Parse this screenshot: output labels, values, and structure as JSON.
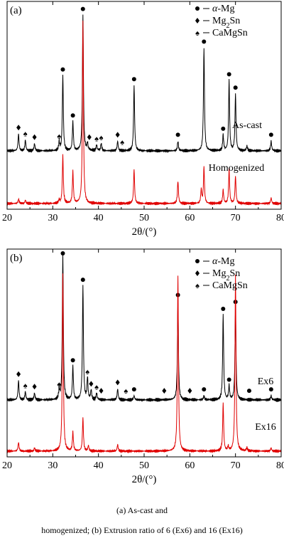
{
  "chart_data": [
    {
      "type": "line",
      "panel_label": "(a)",
      "xlabel": "2θ/(°)",
      "xlim": [
        20,
        80
      ],
      "x_ticks": [
        20,
        30,
        40,
        50,
        60,
        70,
        80
      ],
      "grid": false,
      "legend_position": "top-right",
      "legend": [
        {
          "symbol": "circle",
          "label": "α-Mg"
        },
        {
          "symbol": "diamond",
          "label": "Mg2Sn"
        },
        {
          "symbol": "spade",
          "label": "CaMgSn"
        }
      ],
      "series": [
        {
          "name": "As-cast",
          "color": "#000000",
          "peaks": [
            {
              "x": 22.5,
              "h": 0.14
            },
            {
              "x": 24.0,
              "h": 0.09
            },
            {
              "x": 26.0,
              "h": 0.06
            },
            {
              "x": 31.4,
              "h": 0.07
            },
            {
              "x": 32.2,
              "h": 0.62
            },
            {
              "x": 34.4,
              "h": 0.24
            },
            {
              "x": 36.6,
              "h": 1.12
            },
            {
              "x": 37.6,
              "h": 0.06
            },
            {
              "x": 39.6,
              "h": 0.05
            },
            {
              "x": 40.6,
              "h": 0.06
            },
            {
              "x": 44.2,
              "h": 0.08
            },
            {
              "x": 47.8,
              "h": 0.54
            },
            {
              "x": 57.4,
              "h": 0.08
            },
            {
              "x": 63.1,
              "h": 0.85
            },
            {
              "x": 67.3,
              "h": 0.13
            },
            {
              "x": 68.6,
              "h": 0.58
            },
            {
              "x": 70.0,
              "h": 0.47
            },
            {
              "x": 72.5,
              "h": 0.04
            },
            {
              "x": 77.8,
              "h": 0.08
            }
          ],
          "markers": [
            {
              "x": 22.5,
              "symbol": "diamond"
            },
            {
              "x": 24.0,
              "symbol": "spade"
            },
            {
              "x": 26.0,
              "symbol": "diamond"
            },
            {
              "x": 31.4,
              "symbol": "spade"
            },
            {
              "x": 32.2,
              "symbol": "circle"
            },
            {
              "x": 34.4,
              "symbol": "circle"
            },
            {
              "x": 36.6,
              "symbol": "circle"
            },
            {
              "x": 38.0,
              "symbol": "diamond"
            },
            {
              "x": 39.6,
              "symbol": "spade"
            },
            {
              "x": 40.6,
              "symbol": "spade"
            },
            {
              "x": 44.2,
              "symbol": "diamond"
            },
            {
              "x": 45.2,
              "symbol": "spade"
            },
            {
              "x": 47.8,
              "symbol": "circle"
            },
            {
              "x": 57.4,
              "symbol": "circle"
            },
            {
              "x": 63.1,
              "symbol": "circle"
            },
            {
              "x": 67.3,
              "symbol": "circle"
            },
            {
              "x": 68.6,
              "symbol": "circle"
            },
            {
              "x": 70.0,
              "symbol": "circle"
            },
            {
              "x": 77.8,
              "symbol": "circle"
            }
          ]
        },
        {
          "name": "Homogenized",
          "color": "#e00000",
          "peaks": [
            {
              "x": 22.5,
              "h": 0.04
            },
            {
              "x": 24.0,
              "h": 0.03
            },
            {
              "x": 31.4,
              "h": 0.03
            },
            {
              "x": 32.2,
              "h": 0.42
            },
            {
              "x": 34.4,
              "h": 0.28
            },
            {
              "x": 36.6,
              "h": 1.6
            },
            {
              "x": 47.8,
              "h": 0.3
            },
            {
              "x": 57.4,
              "h": 0.2
            },
            {
              "x": 63.1,
              "h": 0.32
            },
            {
              "x": 62.5,
              "h": 0.12
            },
            {
              "x": 67.3,
              "h": 0.12
            },
            {
              "x": 68.6,
              "h": 0.3
            },
            {
              "x": 70.0,
              "h": 0.24
            },
            {
              "x": 77.8,
              "h": 0.05
            }
          ]
        }
      ]
    },
    {
      "type": "line",
      "panel_label": "(b)",
      "xlabel": "2θ/(°)",
      "xlim": [
        20,
        80
      ],
      "x_ticks": [
        20,
        30,
        40,
        50,
        60,
        70,
        80
      ],
      "grid": false,
      "legend_position": "top-right",
      "legend": [
        {
          "symbol": "circle",
          "label": "α-Mg"
        },
        {
          "symbol": "diamond",
          "label": "Mg2Sn"
        },
        {
          "symbol": "spade",
          "label": "CaMgSn"
        }
      ],
      "series": [
        {
          "name": "Ex6",
          "color": "#000000",
          "peaks": [
            {
              "x": 22.5,
              "h": 0.14
            },
            {
              "x": 24.0,
              "h": 0.06
            },
            {
              "x": 26.0,
              "h": 0.05
            },
            {
              "x": 31.4,
              "h": 0.07
            },
            {
              "x": 32.2,
              "h": 1.05
            },
            {
              "x": 34.4,
              "h": 0.24
            },
            {
              "x": 36.6,
              "h": 0.82
            },
            {
              "x": 37.6,
              "h": 0.16
            },
            {
              "x": 38.4,
              "h": 0.07
            },
            {
              "x": 39.6,
              "h": 0.05
            },
            {
              "x": 44.2,
              "h": 0.08
            },
            {
              "x": 47.8,
              "h": 0.03
            },
            {
              "x": 57.4,
              "h": 0.71
            },
            {
              "x": 63.1,
              "h": 0.03
            },
            {
              "x": 67.3,
              "h": 0.61
            },
            {
              "x": 68.6,
              "h": 0.1
            },
            {
              "x": 70.0,
              "h": 0.66
            },
            {
              "x": 77.8,
              "h": 0.03
            }
          ],
          "markers": [
            {
              "x": 22.5,
              "symbol": "diamond"
            },
            {
              "x": 24.0,
              "symbol": "spade"
            },
            {
              "x": 26.0,
              "symbol": "diamond"
            },
            {
              "x": 31.4,
              "symbol": "spade"
            },
            {
              "x": 32.2,
              "symbol": "circle"
            },
            {
              "x": 34.4,
              "symbol": "circle"
            },
            {
              "x": 36.6,
              "symbol": "circle"
            },
            {
              "x": 37.6,
              "symbol": "spade"
            },
            {
              "x": 38.4,
              "symbol": "diamond"
            },
            {
              "x": 39.6,
              "symbol": "spade"
            },
            {
              "x": 40.6,
              "symbol": "diamond"
            },
            {
              "x": 44.2,
              "symbol": "diamond"
            },
            {
              "x": 46.0,
              "symbol": "spade"
            },
            {
              "x": 47.8,
              "symbol": "circle"
            },
            {
              "x": 54.4,
              "symbol": "diamond"
            },
            {
              "x": 57.4,
              "symbol": "circle"
            },
            {
              "x": 60.0,
              "symbol": "diamond"
            },
            {
              "x": 63.1,
              "symbol": "circle"
            },
            {
              "x": 67.3,
              "symbol": "circle"
            },
            {
              "x": 68.6,
              "symbol": "circle"
            },
            {
              "x": 70.0,
              "symbol": "circle"
            },
            {
              "x": 73.0,
              "symbol": "circle"
            },
            {
              "x": 77.8,
              "symbol": "circle"
            }
          ]
        },
        {
          "name": "Ex16",
          "color": "#e00000",
          "peaks": [
            {
              "x": 22.5,
              "h": 0.08
            },
            {
              "x": 26.0,
              "h": 0.03
            },
            {
              "x": 32.2,
              "h": 1.6
            },
            {
              "x": 34.4,
              "h": 0.17
            },
            {
              "x": 36.6,
              "h": 0.3
            },
            {
              "x": 37.8,
              "h": 0.05
            },
            {
              "x": 44.2,
              "h": 0.06
            },
            {
              "x": 57.4,
              "h": 1.6
            },
            {
              "x": 67.3,
              "h": 0.43
            },
            {
              "x": 68.4,
              "h": 0.04
            },
            {
              "x": 70.0,
              "h": 1.6
            },
            {
              "x": 72.5,
              "h": 0.03
            },
            {
              "x": 77.8,
              "h": 0.03
            }
          ]
        }
      ]
    }
  ],
  "caption_line1": "(a)   As-cast   and",
  "caption_line2": "homogenized; (b) Extrusion ratio of 6 (Ex6) and 16 (Ex16)"
}
